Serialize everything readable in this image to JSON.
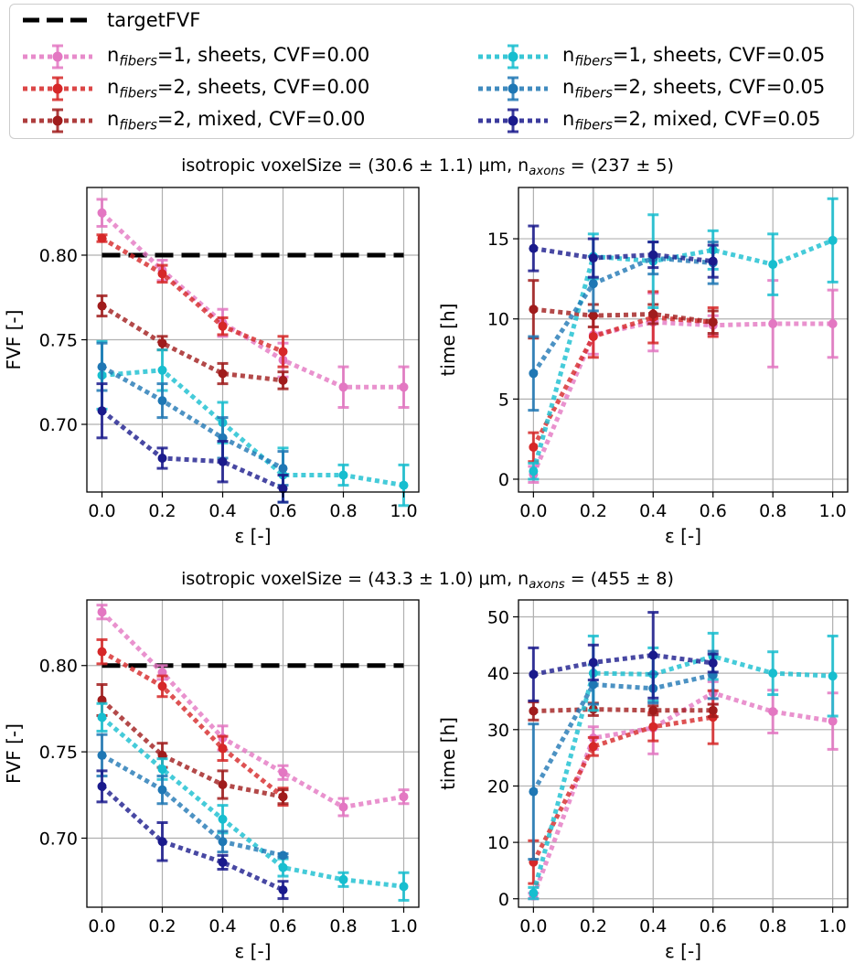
{
  "colors": {
    "targetFVF": "#000000",
    "n1_sheets_cvf000": "#e377c2",
    "n2_sheets_cvf000": "#d62728",
    "n2_mixed_cvf000": "#a01c1c",
    "n1_sheets_cvf005": "#17becf",
    "n2_sheets_cvf005": "#1f77b4",
    "n2_mixed_cvf005": "#1a1a8c"
  },
  "legend": {
    "targetFVF": "targetFVF",
    "n1_sheets_cvf000": {
      "pre": "n",
      "sub": "fibers",
      "post": "=1, sheets, CVF=0.00"
    },
    "n2_sheets_cvf000": {
      "pre": "n",
      "sub": "fibers",
      "post": "=2, sheets, CVF=0.00"
    },
    "n2_mixed_cvf000": {
      "pre": "n",
      "sub": "fibers",
      "post": "=2, mixed, CVF=0.00"
    },
    "n1_sheets_cvf005": {
      "pre": "n",
      "sub": "fibers",
      "post": "=1, sheets, CVF=0.05"
    },
    "n2_sheets_cvf005": {
      "pre": "n",
      "sub": "fibers",
      "post": "=2, sheets, CVF=0.05"
    },
    "n2_mixed_cvf005": {
      "pre": "n",
      "sub": "fibers",
      "post": "=2, mixed, CVF=0.05"
    }
  },
  "row_titles": [
    {
      "pre": "isotropic voxelSize = (30.6 ± 1.1) μm, n",
      "sub": "axons",
      "post": " = (237 ± 5)"
    },
    {
      "pre": "isotropic voxelSize = (43.3 ± 1.0) μm, n",
      "sub": "axons",
      "post": " = (455 ± 8)"
    }
  ],
  "chart_data": [
    {
      "type": "line",
      "panel": "top-left",
      "xlabel": "ε [-]",
      "ylabel": "FVF [-]",
      "xlim": [
        -0.05,
        1.05
      ],
      "ylim": [
        0.66,
        0.84
      ],
      "xticks": [
        0.0,
        0.2,
        0.4,
        0.6,
        0.8,
        1.0
      ],
      "xtick_labels": [
        "0.0",
        "0.2",
        "0.4",
        "0.6",
        "0.8",
        "1.0"
      ],
      "yticks": [
        0.7,
        0.75,
        0.8
      ],
      "ytick_labels": [
        "0.70",
        "0.75",
        "0.80"
      ],
      "target": 0.8,
      "series": [
        {
          "key": "n1_sheets_cvf000",
          "x": [
            0.0,
            0.2,
            0.4,
            0.6,
            0.8,
            1.0
          ],
          "y": [
            0.825,
            0.791,
            0.76,
            0.738,
            0.722,
            0.722
          ],
          "err": [
            0.008,
            0.006,
            0.008,
            0.01,
            0.012,
            0.012
          ]
        },
        {
          "key": "n2_sheets_cvf000",
          "x": [
            0.0,
            0.2,
            0.4,
            0.6
          ],
          "y": [
            0.81,
            0.789,
            0.758,
            0.743
          ],
          "err": [
            0.002,
            0.005,
            0.005,
            0.009
          ]
        },
        {
          "key": "n2_mixed_cvf000",
          "x": [
            0.0,
            0.2,
            0.4,
            0.6
          ],
          "y": [
            0.77,
            0.748,
            0.73,
            0.726
          ],
          "err": [
            0.006,
            0.004,
            0.006,
            0.005
          ]
        },
        {
          "key": "n1_sheets_cvf005",
          "x": [
            0.0,
            0.2,
            0.4,
            0.6,
            0.8,
            1.0
          ],
          "y": [
            0.729,
            0.732,
            0.701,
            0.67,
            0.67,
            0.664
          ],
          "err": [
            0.02,
            0.012,
            0.012,
            0.016,
            0.006,
            0.012
          ]
        },
        {
          "key": "n2_sheets_cvf005",
          "x": [
            0.0,
            0.2,
            0.4,
            0.6
          ],
          "y": [
            0.734,
            0.714,
            0.692,
            0.674
          ],
          "err": [
            0.014,
            0.01,
            0.012,
            0.01
          ]
        },
        {
          "key": "n2_mixed_cvf005",
          "x": [
            0.0,
            0.2,
            0.4,
            0.6
          ],
          "y": [
            0.708,
            0.68,
            0.678,
            0.662
          ],
          "err": [
            0.016,
            0.006,
            0.012,
            0.008
          ]
        }
      ]
    },
    {
      "type": "line",
      "panel": "top-right",
      "xlabel": "ε [-]",
      "ylabel": "time [h]",
      "xlim": [
        -0.05,
        1.05
      ],
      "ylim": [
        -0.8,
        18.2
      ],
      "xticks": [
        0.0,
        0.2,
        0.4,
        0.6,
        0.8,
        1.0
      ],
      "xtick_labels": [
        "0.0",
        "0.2",
        "0.4",
        "0.6",
        "0.8",
        "1.0"
      ],
      "yticks": [
        0,
        5,
        10,
        15
      ],
      "ytick_labels": [
        "0",
        "5",
        "10",
        "15"
      ],
      "series": [
        {
          "key": "n1_sheets_cvf000",
          "x": [
            0.0,
            0.2,
            0.4,
            0.6,
            0.8,
            1.0
          ],
          "y": [
            0.3,
            9.0,
            9.8,
            9.6,
            9.7,
            9.7
          ],
          "err": [
            0.5,
            1.2,
            1.8,
            0.6,
            2.7,
            2.1
          ]
        },
        {
          "key": "n2_sheets_cvf000",
          "x": [
            0.0,
            0.2,
            0.4,
            0.6
          ],
          "y": [
            2.0,
            8.9,
            10.1,
            9.8
          ],
          "err": [
            0.9,
            1.3,
            1.6,
            0.9
          ]
        },
        {
          "key": "n2_mixed_cvf000",
          "x": [
            0.0,
            0.2,
            0.4,
            0.6
          ],
          "y": [
            10.6,
            10.2,
            10.3,
            9.8
          ],
          "err": [
            1.8,
            0.7,
            0.6,
            0.7
          ]
        },
        {
          "key": "n1_sheets_cvf005",
          "x": [
            0.0,
            0.2,
            0.4,
            0.6,
            0.8,
            1.0
          ],
          "y": [
            0.5,
            13.9,
            13.6,
            14.3,
            13.4,
            14.9
          ],
          "err": [
            0.5,
            1.4,
            2.9,
            1.2,
            1.9,
            2.6
          ]
        },
        {
          "key": "n2_sheets_cvf005",
          "x": [
            0.0,
            0.2,
            0.4,
            0.6
          ],
          "y": [
            6.6,
            12.2,
            13.8,
            13.5
          ],
          "err": [
            2.3,
            1.7,
            1.0,
            1.3
          ]
        },
        {
          "key": "n2_mixed_cvf005",
          "x": [
            0.0,
            0.2,
            0.4,
            0.6
          ],
          "y": [
            14.4,
            13.8,
            14.0,
            13.6
          ],
          "err": [
            1.4,
            1.2,
            0.8,
            1.0
          ]
        }
      ]
    },
    {
      "type": "line",
      "panel": "bottom-left",
      "xlabel": "ε [-]",
      "ylabel": "FVF [-]",
      "xlim": [
        -0.05,
        1.05
      ],
      "ylim": [
        0.66,
        0.838
      ],
      "xticks": [
        0.0,
        0.2,
        0.4,
        0.6,
        0.8,
        1.0
      ],
      "xtick_labels": [
        "0.0",
        "0.2",
        "0.4",
        "0.6",
        "0.8",
        "1.0"
      ],
      "yticks": [
        0.7,
        0.75,
        0.8
      ],
      "ytick_labels": [
        "0.70",
        "0.75",
        "0.80"
      ],
      "target": 0.8,
      "series": [
        {
          "key": "n1_sheets_cvf000",
          "x": [
            0.0,
            0.2,
            0.4,
            0.6,
            0.8,
            1.0
          ],
          "y": [
            0.831,
            0.796,
            0.758,
            0.738,
            0.718,
            0.724
          ],
          "err": [
            0.004,
            0.004,
            0.007,
            0.004,
            0.005,
            0.004
          ]
        },
        {
          "key": "n2_sheets_cvf000",
          "x": [
            0.0,
            0.2,
            0.4,
            0.6
          ],
          "y": [
            0.808,
            0.788,
            0.752,
            0.724
          ],
          "err": [
            0.007,
            0.006,
            0.007,
            0.005
          ]
        },
        {
          "key": "n2_mixed_cvf000",
          "x": [
            0.0,
            0.2,
            0.4,
            0.6
          ],
          "y": [
            0.78,
            0.748,
            0.731,
            0.724
          ],
          "err": [
            0.009,
            0.007,
            0.008,
            0.004
          ]
        },
        {
          "key": "n1_sheets_cvf005",
          "x": [
            0.0,
            0.2,
            0.4,
            0.6,
            0.8,
            1.0
          ],
          "y": [
            0.77,
            0.74,
            0.711,
            0.683,
            0.676,
            0.672
          ],
          "err": [
            0.008,
            0.006,
            0.008,
            0.005,
            0.004,
            0.008
          ]
        },
        {
          "key": "n2_sheets_cvf005",
          "x": [
            0.0,
            0.2,
            0.4,
            0.6
          ],
          "y": [
            0.748,
            0.728,
            0.698,
            0.69
          ],
          "err": [
            0.012,
            0.008,
            0.006,
            0.001
          ]
        },
        {
          "key": "n2_mixed_cvf005",
          "x": [
            0.0,
            0.2,
            0.4,
            0.6
          ],
          "y": [
            0.73,
            0.698,
            0.686,
            0.67
          ],
          "err": [
            0.009,
            0.011,
            0.004,
            0.005
          ]
        }
      ]
    },
    {
      "type": "line",
      "panel": "bottom-right",
      "xlabel": "ε [-]",
      "ylabel": "time [h]",
      "xlim": [
        -0.05,
        1.05
      ],
      "ylim": [
        -1.5,
        53
      ],
      "xticks": [
        0.0,
        0.2,
        0.4,
        0.6,
        0.8,
        1.0
      ],
      "xtick_labels": [
        "0.0",
        "0.2",
        "0.4",
        "0.6",
        "0.8",
        "1.0"
      ],
      "yticks": [
        0,
        10,
        20,
        30,
        40,
        50
      ],
      "ytick_labels": [
        "0",
        "10",
        "20",
        "30",
        "40",
        "50"
      ],
      "series": [
        {
          "key": "n1_sheets_cvf000",
          "x": [
            0.0,
            0.2,
            0.4,
            0.6,
            0.8,
            1.0
          ],
          "y": [
            0.5,
            28.5,
            30.3,
            36.5,
            33.2,
            31.5
          ],
          "err": [
            0.5,
            2.0,
            4.6,
            2.0,
            3.8,
            5.0
          ]
        },
        {
          "key": "n2_sheets_cvf000",
          "x": [
            0.0,
            0.2,
            0.4,
            0.6
          ],
          "y": [
            6.5,
            27.0,
            30.5,
            32.2
          ],
          "err": [
            3.8,
            1.6,
            2.5,
            4.7
          ]
        },
        {
          "key": "n2_mixed_cvf000",
          "x": [
            0.0,
            0.2,
            0.4,
            0.6
          ],
          "y": [
            33.3,
            33.6,
            33.4,
            33.4
          ],
          "err": [
            1.6,
            1.1,
            0.8,
            1.1
          ]
        },
        {
          "key": "n1_sheets_cvf005",
          "x": [
            0.0,
            0.2,
            0.4,
            0.6,
            0.8,
            1.0
          ],
          "y": [
            1.0,
            40.0,
            39.8,
            43.0,
            40.0,
            39.5
          ],
          "err": [
            1.0,
            6.6,
            4.7,
            4.1,
            3.8,
            7.1
          ]
        },
        {
          "key": "n2_sheets_cvf005",
          "x": [
            0.0,
            0.2,
            0.4,
            0.6
          ],
          "y": [
            19.0,
            38.0,
            37.3,
            39.7
          ],
          "err": [
            12.0,
            3.5,
            2.6,
            4.2
          ]
        },
        {
          "key": "n2_mixed_cvf005",
          "x": [
            0.0,
            0.2,
            0.4,
            0.6
          ],
          "y": [
            39.8,
            41.9,
            43.2,
            41.8
          ],
          "err": [
            4.7,
            3.1,
            7.6,
            1.6
          ]
        }
      ]
    }
  ]
}
